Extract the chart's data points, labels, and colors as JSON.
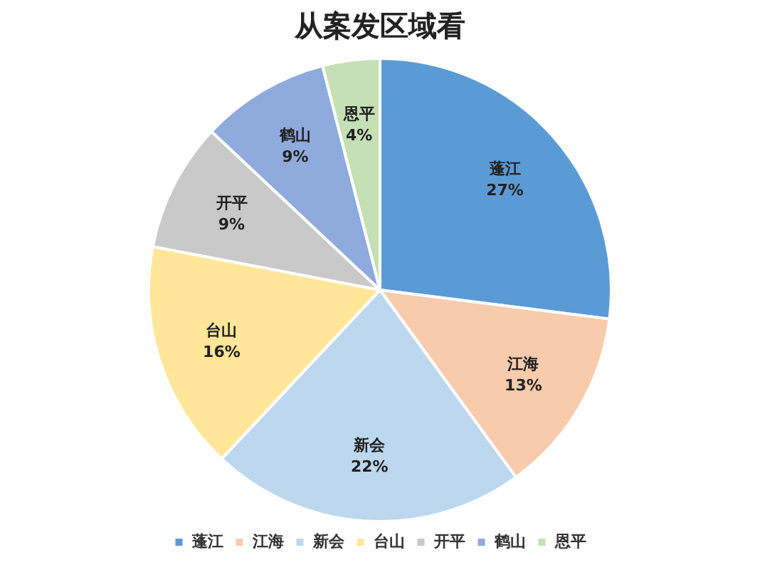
{
  "chart_data": {
    "type": "pie",
    "title": "从案发区域看",
    "categories": [
      "蓬江",
      "江海",
      "新会",
      "台山",
      "开平",
      "鹤山",
      "恩平"
    ],
    "values": [
      27,
      13,
      22,
      16,
      9,
      9,
      4
    ],
    "colors": [
      "#5b9bd5",
      "#f8cbad",
      "#bdd7ee",
      "#ffe699",
      "#c9c9c9",
      "#8faadc",
      "#c5e0b4"
    ],
    "value_labels": [
      "27%",
      "13%",
      "22%",
      "16%",
      "9%",
      "9%",
      "4%"
    ],
    "legend": "bottom"
  }
}
